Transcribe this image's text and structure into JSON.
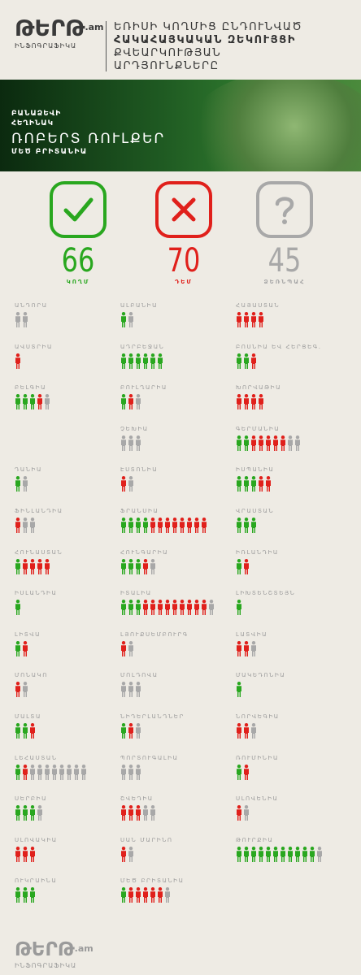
{
  "header": {
    "logo": "ԹԵՐԹ",
    "logo_suffix": ".am",
    "logo_sub": "ԻՆՖՈԳՐԱՖԻԿԱ",
    "title_lines": [
      "ԵՌԻՍԻ ԿՈՂՄԻՑ ԸՆԴՈՒՆՎԱԾ",
      "ՀԱԿԱՀԱՅԿԱԿԱՆ ԶԵԿՈՒՅՑԻ",
      "ՔՎԵԱՐԿՈՒԹՅԱՆ",
      "ԱՐԴՅՈՒՆՔՆԵՐԸ"
    ]
  },
  "banner": {
    "line1": "ԲԱՆԱՁԵՎԻ",
    "line2": "ՀԵՂԻՆԱԿ",
    "name": "ՌՈԲԵՐՏ ՌՈՒԼՔԵՐ",
    "country": "ՄԵԾ ԲՐԻՏԱՆԻԱ"
  },
  "colors": {
    "yes": "#29a71f",
    "no": "#e0201b",
    "abstain": "#a8a8a8",
    "title": "#333333",
    "country": "#9c9c9c"
  },
  "summary": [
    {
      "kind": "yes",
      "icon": "check-icon",
      "value": "66",
      "label": "ԿՈՂՄ"
    },
    {
      "kind": "no",
      "icon": "cross-icon",
      "value": "70",
      "label": "ԴԵՄ"
    },
    {
      "kind": "abstain",
      "icon": "question-icon",
      "value": "45",
      "label": "ՁԵՌՆՊԱՀ"
    }
  ],
  "chart_data": {
    "type": "table",
    "columns": [
      "yes",
      "no",
      "abstain"
    ],
    "rows": [
      {
        "country": "ԱՆԴՈՐԱ",
        "yes": 0,
        "no": 0,
        "abstain": 2
      },
      {
        "country": "ԱԼԲԱՆԻԱ",
        "yes": 1,
        "no": 0,
        "abstain": 1
      },
      {
        "country": "ՀԱՅԱՍՏԱՆ",
        "yes": 0,
        "no": 4,
        "abstain": 0
      },
      {
        "country": "ԱՎՍՏՐԻԱ",
        "yes": 0,
        "no": 1,
        "abstain": 0
      },
      {
        "country": "ԱԴՐԲԵՋԱՆ",
        "yes": 6,
        "no": 0,
        "abstain": 0
      },
      {
        "country": "ԲՈՍՆԻԱ ԵՎ ՀԵՐՑԵԳ.",
        "yes": 2,
        "no": 1,
        "abstain": 0
      },
      {
        "country": "ԲԵԼԳԻԱ",
        "yes": 3,
        "no": 1,
        "abstain": 1
      },
      {
        "country": "ԲՈՒԼՂԱՐԻԱ",
        "yes": 1,
        "no": 1,
        "abstain": 1
      },
      {
        "country": "ԽՈՐՎԱԹԻԱ",
        "yes": 0,
        "no": 4,
        "abstain": 0
      },
      {
        "country": "ՉԵԽԻԱ",
        "yes": 0,
        "no": 0,
        "abstain": 3
      },
      {
        "country": "ԳԵՐՄԱՆԻԱ",
        "yes": 2,
        "no": 5,
        "abstain": 2
      },
      {
        "country": "ԴԱՆԻԱ",
        "yes": 1,
        "no": 0,
        "abstain": 1
      },
      {
        "country": "ԷՍՏՈՆԻԱ",
        "yes": 0,
        "no": 1,
        "abstain": 1
      },
      {
        "country": "ԻՍՊԱՆԻԱ",
        "yes": 3,
        "no": 2,
        "abstain": 0
      },
      {
        "country": "ՖԻՆԼԱՆԴԻԱ",
        "yes": 0,
        "no": 1,
        "abstain": 2
      },
      {
        "country": "ՖՐԱՆՍԻԱ",
        "yes": 4,
        "no": 8,
        "abstain": 0
      },
      {
        "country": "ՎՐԱՍՏԱՆ",
        "yes": 3,
        "no": 0,
        "abstain": 0
      },
      {
        "country": "ՀՈՒՆԱՍՏԱՆ",
        "yes": 1,
        "no": 4,
        "abstain": 0
      },
      {
        "country": "ՀՈՒՆԳԱՐԻԱ",
        "yes": 3,
        "no": 1,
        "abstain": 1
      },
      {
        "country": "ԻՌԼԱՆԴԻԱ",
        "yes": 1,
        "no": 1,
        "abstain": 0
      },
      {
        "country": "ԻՍԼԱՆԴԻԱ",
        "yes": 1,
        "no": 0,
        "abstain": 0
      },
      {
        "country": "ԻՏԱԼԻԱ",
        "yes": 3,
        "no": 9,
        "abstain": 1
      },
      {
        "country": "ԼԻԽՏԵՆՇՏԵՅՆ",
        "yes": 1,
        "no": 0,
        "abstain": 0
      },
      {
        "country": "ԼԻՏՎԱ",
        "yes": 1,
        "no": 1,
        "abstain": 0
      },
      {
        "country": "ԼՅՈՒՔՍԵՄԲՈՒՐԳ",
        "yes": 0,
        "no": 1,
        "abstain": 1
      },
      {
        "country": "ԼԱՏՎԻԱ",
        "yes": 0,
        "no": 2,
        "abstain": 1
      },
      {
        "country": "ՄՈՆԱԿՈ",
        "yes": 0,
        "no": 1,
        "abstain": 1
      },
      {
        "country": "ՄՈԼԴՈՎԱ",
        "yes": 0,
        "no": 0,
        "abstain": 3
      },
      {
        "country": "ՄԱԿԵԴՈՆԻԱ",
        "yes": 1,
        "no": 0,
        "abstain": 0
      },
      {
        "country": "ՄԱԼՏԱ",
        "yes": 2,
        "no": 1,
        "abstain": 0
      },
      {
        "country": "ՆԻԴԵՐԼԱՆԴՆԵՐ",
        "yes": 1,
        "no": 1,
        "abstain": 1
      },
      {
        "country": "ՆՈՐՎԵԳԻԱ",
        "yes": 0,
        "no": 2,
        "abstain": 1
      },
      {
        "country": "ԼԵՀԱՍՏԱՆ",
        "yes": 1,
        "no": 1,
        "abstain": 8
      },
      {
        "country": "ՊՈՐՏՈՒԳԱԼԻԱ",
        "yes": 0,
        "no": 0,
        "abstain": 3
      },
      {
        "country": "ՌՈՒՄԻՆԻԱ",
        "yes": 1,
        "no": 1,
        "abstain": 0
      },
      {
        "country": "ՍԵՐԲԻԱ",
        "yes": 3,
        "no": 0,
        "abstain": 1
      },
      {
        "country": "ՇՎԵԴԻԱ",
        "yes": 0,
        "no": 3,
        "abstain": 2
      },
      {
        "country": "ՍԼՈՎԵՆԻԱ",
        "yes": 0,
        "no": 1,
        "abstain": 1
      },
      {
        "country": "ՍԼՈՎԱԿԻԱ",
        "yes": 0,
        "no": 3,
        "abstain": 0
      },
      {
        "country": "ՍԱՆ ՄԱՐԻՆՈ",
        "yes": 0,
        "no": 1,
        "abstain": 1
      },
      {
        "country": "ԹՈՒՐՔԻԱ",
        "yes": 11,
        "no": 0,
        "abstain": 1
      },
      {
        "country": "ՈՒԿՐԱԻՆԱ",
        "yes": 3,
        "no": 0,
        "abstain": 0
      },
      {
        "country": "ՄԵԾ ԲՐԻՏԱՆԻԱ",
        "yes": 1,
        "no": 5,
        "abstain": 1
      }
    ]
  },
  "footer": {
    "logo": "ԹԵՐԹ",
    "logo_suffix": ".am",
    "logo_sub": "ԻՆՖՈԳՐԱՖԻԿԱ"
  }
}
